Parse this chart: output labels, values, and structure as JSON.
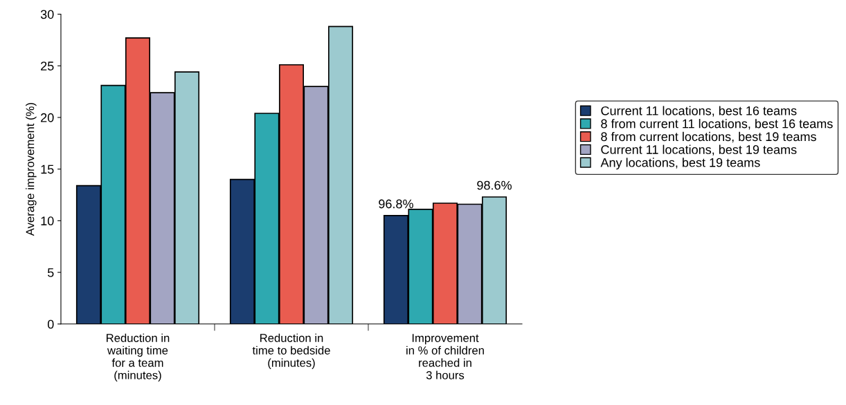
{
  "chart_data": {
    "type": "bar",
    "ylabel": "Average improvement (%)",
    "categories": [
      "Reduction in\nwaiting time\nfor a team\n(minutes)",
      "Reduction in\ntime to bedside\n(minutes)",
      "Improvement\nin % of children\nreached in\n3 hours"
    ],
    "series": [
      {
        "name": "Current 11 locations, best 16 teams",
        "color": "#1b3d6f",
        "values": [
          13.4,
          14.0,
          10.5
        ]
      },
      {
        "name": "8 from current 11 locations, best 16 teams",
        "color": "#2ea9b0",
        "values": [
          23.1,
          20.4,
          11.1
        ]
      },
      {
        "name": "8 from current locations, best 19 teams",
        "color": "#e95c50",
        "values": [
          27.7,
          25.1,
          11.7
        ]
      },
      {
        "name": "Current 11 locations, best 19 teams",
        "color": "#a3a5c3",
        "values": [
          22.4,
          23.0,
          11.6
        ]
      },
      {
        "name": "Any locations, best 19 teams",
        "color": "#9ccacf",
        "values": [
          24.4,
          28.8,
          12.3
        ]
      }
    ],
    "annotations": [
      "96.8%",
      "98.6%"
    ],
    "ylim": [
      0,
      30
    ],
    "yticks": [
      0,
      5,
      10,
      15,
      20,
      25,
      30
    ],
    "grid": false,
    "legend": "right"
  }
}
